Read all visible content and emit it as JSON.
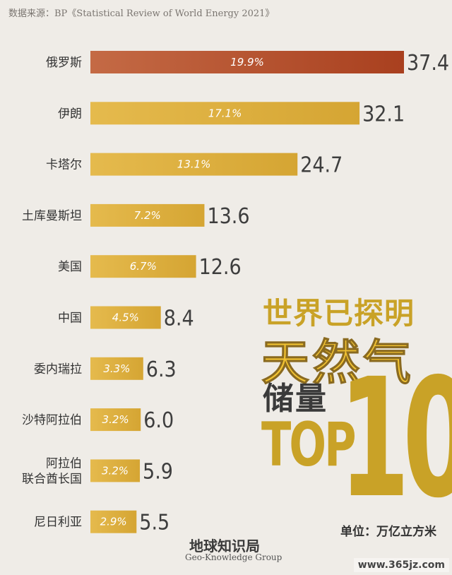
{
  "source": "数据来源：BP《Statistical Review of World Energy 2021》",
  "title_lines": [
    "世界已探明",
    "天然气",
    "储量",
    "TOP",
    "10"
  ],
  "unit_label": "单位：万亿立方米",
  "brand": {
    "cn": "地球知识局",
    "en": "Geo-Knowledge Group"
  },
  "site": "www.365jz.com",
  "colors": {
    "highlight": "#a9401f",
    "bar": "#d5a533",
    "bar_light": "#e5ba4d"
  },
  "chart_data": {
    "type": "bar",
    "orientation": "horizontal",
    "categories": [
      "俄罗斯",
      "伊朗",
      "卡塔尔",
      "土库曼斯坦",
      "美国",
      "中国",
      "委内瑞拉",
      "沙特阿拉伯",
      "阿拉伯联合酋长国",
      "尼日利亚"
    ],
    "category_lines": [
      [
        "俄罗斯"
      ],
      [
        "伊朗"
      ],
      [
        "卡塔尔"
      ],
      [
        "土库曼斯坦"
      ],
      [
        "美国"
      ],
      [
        "中国"
      ],
      [
        "委内瑞拉"
      ],
      [
        "沙特阿拉伯"
      ],
      [
        "阿拉伯",
        "联合酋长国"
      ],
      [
        "尼日利亚"
      ]
    ],
    "values": [
      37.4,
      32.1,
      24.7,
      13.6,
      12.6,
      8.4,
      6.3,
      6.0,
      5.9,
      5.5
    ],
    "value_labels": [
      "37.4",
      "32.1",
      "24.7",
      "13.6",
      "12.6",
      "8.4",
      "6.3",
      "6.0",
      "5.9",
      "5.5"
    ],
    "share_labels": [
      "19.9%",
      "17.1%",
      "13.1%",
      "7.2%",
      "6.7%",
      "4.5%",
      "3.3%",
      "3.2%",
      "3.2%",
      "2.9%"
    ],
    "xlim": [
      0,
      37.4
    ],
    "grid": false,
    "legend": "none"
  }
}
